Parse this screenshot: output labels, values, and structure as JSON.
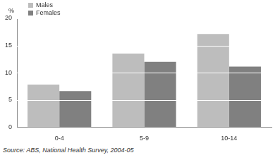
{
  "chart_data": {
    "type": "bar",
    "y_label": "%",
    "categories": [
      "0-4",
      "5-9",
      "10-14"
    ],
    "series": [
      {
        "name": "Males",
        "color": "#bdbdbd",
        "values": [
          7.8,
          13.5,
          17.1
        ]
      },
      {
        "name": "Females",
        "color": "#808080",
        "values": [
          6.6,
          12.0,
          11.1
        ]
      }
    ],
    "ylim": [
      0,
      20
    ],
    "yticks": [
      0,
      5,
      10,
      15,
      20
    ],
    "grid": true,
    "legend": "top-left",
    "annotation": "Source: ABS, National Health Survey, 2004-05"
  }
}
